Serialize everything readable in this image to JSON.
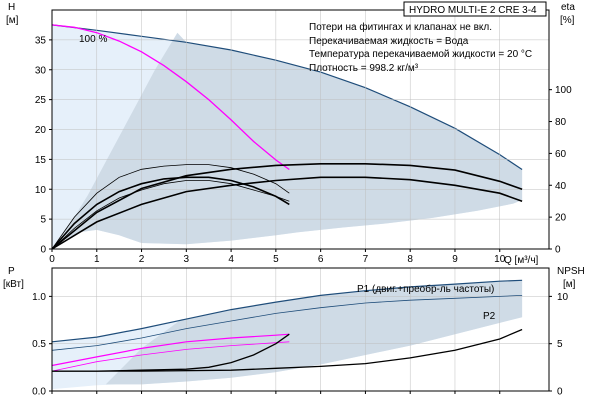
{
  "title": "HYDRO MULTI-E 2 CRE 3-4",
  "notes": [
    "Потери на фитингах и клапанах не вкл.",
    "Перекачиваемая жидкость = Вода",
    "Температура перекачиваемой жидкости = 20 °C",
    "Плотность = 998.2 кг/м³"
  ],
  "colors": {
    "region_light": "#e6f0fa",
    "region_main": "#cfdbe6",
    "envelope": "#1f4d7a",
    "speed_curve": "#ff00ff",
    "black": "#000000",
    "grid": "#bfbfbf"
  },
  "chart_data": [
    {
      "type": "line",
      "x_label": "Q [м³/ч]",
      "y_label_left": [
        "H",
        "[м]"
      ],
      "y_label_right": [
        "eta",
        "[%]"
      ],
      "x_ticks": [
        0,
        1,
        2,
        3,
        4,
        5,
        6,
        7,
        8,
        9,
        10
      ],
      "y_ticks_left": [
        0,
        5,
        10,
        15,
        20,
        25,
        30,
        35
      ],
      "y_ticks_right": [
        0,
        20,
        40,
        60,
        80,
        100
      ],
      "xlim": [
        0,
        11.1
      ],
      "ylim": [
        0,
        40
      ],
      "ylim_right": [
        0,
        150
      ],
      "speed_label": "100 %",
      "envelope_top": {
        "x": [
          0,
          1,
          2,
          3,
          4,
          5,
          6,
          7,
          8,
          9,
          10,
          10.5
        ],
        "y": [
          37.5,
          36.6,
          35.6,
          34.6,
          33.3,
          31.6,
          29.6,
          27.0,
          23.8,
          20.2,
          15.8,
          13.3
        ]
      },
      "region_lower_boundary": {
        "x": [
          0,
          0.3,
          0.6,
          1.0,
          1.5,
          2.0,
          3.0,
          4.0,
          5.0,
          5.5,
          6.5,
          7.5,
          8.5,
          9.5,
          10.3,
          10.5
        ],
        "y": [
          0,
          1.6,
          2.8,
          3.2,
          2.3,
          1.0,
          0.8,
          1.4,
          2.3,
          2.8,
          3.6,
          4.3,
          5.2,
          6.4,
          7.6,
          8.2
        ]
      },
      "region_light_right": {
        "x": [
          0.3,
          0.8,
          1.3,
          1.8,
          2.3,
          2.8
        ],
        "y": [
          3.0,
          9.0,
          16.0,
          23.0,
          30.0,
          36.2
        ]
      },
      "pump_curve_100": {
        "x": [
          0,
          0.5,
          1.0,
          1.5,
          2.0,
          2.5,
          3.0,
          3.5,
          4.0,
          4.5,
          5.0,
          5.3
        ],
        "y": [
          37.5,
          37.1,
          36.2,
          34.8,
          33.0,
          30.7,
          28.0,
          25.0,
          21.6,
          18.0,
          14.9,
          13.3
        ]
      },
      "eta_system_max": {
        "x": [
          0,
          1,
          2,
          3,
          4,
          5,
          6,
          7,
          8,
          9,
          10,
          10.5
        ],
        "y": [
          0,
          23,
          38,
          46,
          50,
          52.5,
          53.5,
          53.5,
          52.5,
          49.5,
          42.5,
          37.5
        ]
      },
      "eta_system_min": {
        "x": [
          0,
          1,
          2,
          3,
          4,
          5,
          6,
          7,
          8,
          9,
          10,
          10.5
        ],
        "y": [
          0,
          17,
          28,
          36,
          40,
          43,
          45,
          45,
          43.5,
          40,
          35,
          30
        ]
      },
      "eta_pump_max": {
        "x": [
          0,
          0.5,
          1.0,
          1.5,
          2.0,
          2.5,
          3.0,
          3.5,
          4.0,
          4.5,
          5.0,
          5.3
        ],
        "y": [
          0,
          20,
          35,
          45,
          50,
          52,
          53,
          53,
          51,
          47,
          41,
          35
        ]
      },
      "eta_pump_a": {
        "x": [
          0,
          0.5,
          1.0,
          1.5,
          2.0,
          2.5,
          3.0,
          3.5,
          4.0,
          4.5,
          5.0,
          5.3
        ],
        "y": [
          0,
          16,
          28,
          36,
          41,
          44,
          45,
          45,
          43,
          39,
          33,
          28
        ]
      },
      "eta_pump_b": {
        "x": [
          0,
          0.5,
          1.0,
          1.5,
          2.0,
          2.5,
          3.0,
          3.5,
          4.0,
          4.5,
          5.0,
          5.3
        ],
        "y": [
          0,
          13,
          24,
          32,
          37,
          41,
          43,
          43,
          41,
          37,
          33,
          30
        ]
      }
    },
    {
      "type": "line",
      "y_label_left": [
        "P",
        "[кВт]"
      ],
      "y_label_right": [
        "NPSH",
        "[м]"
      ],
      "y_ticks_left": [
        0.0,
        0.5,
        1.0
      ],
      "y_ticks_left_labels": [
        "0.0",
        "0.5",
        "1.0"
      ],
      "y_ticks_right": [
        0,
        5,
        10
      ],
      "xlim": [
        0,
        11.1
      ],
      "ylim": [
        0,
        1.3
      ],
      "ylim_right": [
        0,
        13
      ],
      "series_labels": {
        "p1": "P1 (двиг.+преобр-ль частоты)",
        "p2": "P2"
      },
      "p1_envelope": {
        "x": [
          0,
          1,
          2,
          3,
          4,
          5,
          6,
          7,
          8,
          9,
          10,
          10.5
        ],
        "y": [
          0.52,
          0.57,
          0.66,
          0.76,
          0.86,
          0.94,
          1.01,
          1.06,
          1.1,
          1.13,
          1.16,
          1.17
        ]
      },
      "p2_envelope": {
        "x": [
          0,
          1,
          2,
          3,
          4,
          5,
          6,
          7,
          8,
          9,
          10,
          10.5
        ],
        "y": [
          0.43,
          0.48,
          0.56,
          0.66,
          0.74,
          0.82,
          0.88,
          0.93,
          0.96,
          0.98,
          1.0,
          1.01
        ]
      },
      "region_lower_boundary": {
        "x": [
          0,
          0.5,
          1.0,
          1.5,
          2.0,
          3.0,
          4.0,
          5.0,
          6.0,
          7.0,
          8.0,
          9.0,
          10.0,
          10.5
        ],
        "y": [
          0.02,
          0.04,
          0.06,
          0.07,
          0.07,
          0.1,
          0.14,
          0.2,
          0.28,
          0.38,
          0.48,
          0.6,
          0.72,
          0.78
        ]
      },
      "p1_speed": {
        "x": [
          0,
          1,
          2,
          3,
          4,
          5,
          5.3
        ],
        "y": [
          0.27,
          0.36,
          0.45,
          0.52,
          0.56,
          0.59,
          0.6
        ]
      },
      "p2_speed": {
        "x": [
          0,
          1,
          2,
          3,
          4,
          5,
          5.3
        ],
        "y": [
          0.21,
          0.31,
          0.38,
          0.44,
          0.48,
          0.51,
          0.52
        ]
      },
      "npsh_pump": {
        "x": [
          0,
          1,
          2,
          3,
          3.5,
          4,
          4.5,
          5.0,
          5.3
        ],
        "y": [
          2.1,
          2.1,
          2.2,
          2.3,
          2.5,
          3.0,
          3.8,
          5.0,
          6.0
        ]
      },
      "npsh_system": {
        "x": [
          0,
          2,
          4,
          5,
          6,
          7,
          8,
          9,
          10,
          10.5
        ],
        "y": [
          2.1,
          2.1,
          2.2,
          2.4,
          2.6,
          2.9,
          3.5,
          4.3,
          5.5,
          6.5
        ]
      }
    }
  ]
}
